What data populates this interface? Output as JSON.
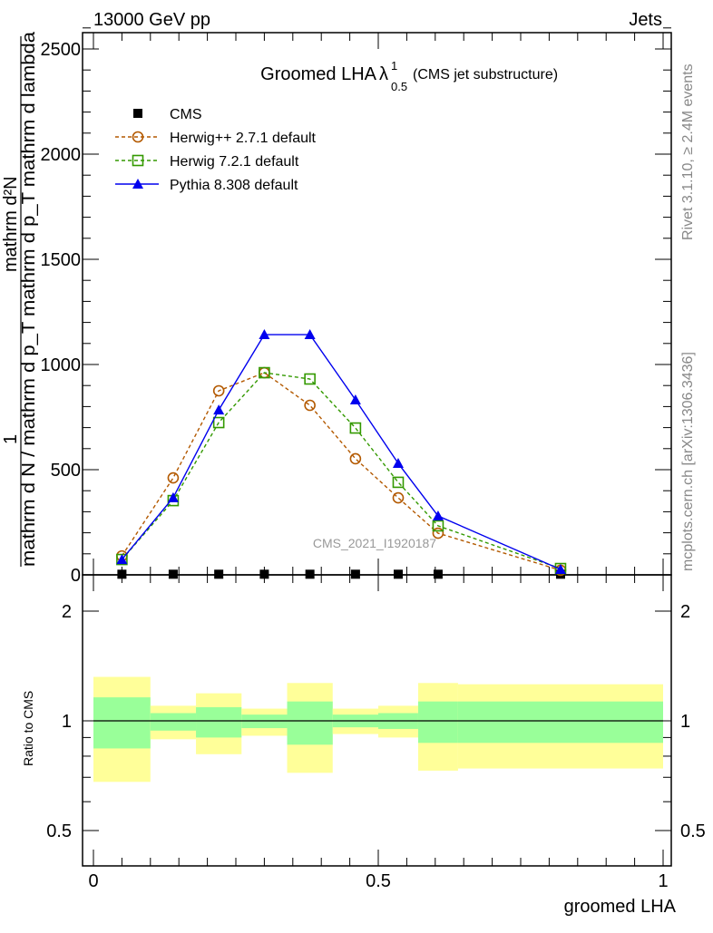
{
  "header": {
    "left": "13000 GeV pp",
    "right": "Jets"
  },
  "side_texts": {
    "rivet": "Rivet 3.1.10, ≥ 2.4M events",
    "mcplots": "mcplots.cern.ch [arXiv:1306.3436]"
  },
  "watermark": "CMS_2021_I1920187",
  "colors": {
    "cms": "#000000",
    "herwigpp": "#b35900",
    "herwig7": "#339900",
    "pythia": "#0000ee",
    "band_outer": "#ffff99",
    "band_inner": "#99ff99"
  },
  "chart_data": [
    {
      "type": "line",
      "title": "Groomed LHA",
      "title_symbol": "λ",
      "title_sup": "1",
      "title_sub": "0.5",
      "title_suffix": "(CMS jet substructure)",
      "ylabel_numerator": "1",
      "ylabel_line1": "mathrm d²N",
      "ylabel_line2": "mathrm d N / mathrm d p_T mathrm d p_T mathrm d lambda",
      "ylim": [
        0,
        2600
      ],
      "xlim": [
        0,
        1
      ],
      "yticks": [
        {
          "v": 0,
          "label": "0"
        },
        {
          "v": 500,
          "label": "500"
        },
        {
          "v": 1000,
          "label": "1000"
        },
        {
          "v": 1500,
          "label": "1500"
        },
        {
          "v": 2000,
          "label": "2000"
        },
        {
          "v": 2500,
          "label": "2500"
        }
      ],
      "legend_position": "top-left",
      "x": [
        0.05,
        0.14,
        0.22,
        0.3,
        0.38,
        0.46,
        0.535,
        0.605,
        0.82
      ],
      "series": [
        {
          "name": "CMS",
          "key": "cms",
          "marker": "square",
          "line": "none",
          "values": [
            3,
            3,
            3,
            3,
            3,
            3,
            3,
            3,
            3
          ]
        },
        {
          "name": "Herwig++ 2.7.1 default",
          "key": "herwigpp",
          "marker": "circle",
          "line": "dashed",
          "values": [
            90,
            461,
            875,
            961,
            806,
            552,
            366,
            198,
            22
          ]
        },
        {
          "name": "Herwig 7.2.1 default",
          "key": "herwig7",
          "marker": "square-open",
          "line": "dashed",
          "values": [
            73,
            353,
            724,
            961,
            931,
            698,
            440,
            233,
            30
          ]
        },
        {
          "name": "Pythia 8.308 default",
          "key": "pythia",
          "marker": "triangle",
          "line": "solid",
          "values": [
            73,
            367,
            784,
            1142,
            1142,
            832,
            530,
            280,
            26
          ]
        }
      ]
    },
    {
      "type": "area",
      "ylabel": "Ratio to CMS",
      "xlabel": "groomed LHA",
      "yscale": "log",
      "ylim": [
        0.4,
        2.5
      ],
      "yticks": [
        {
          "v": 0.5,
          "label": "0.5"
        },
        {
          "v": 1,
          "label": "1"
        },
        {
          "v": 2,
          "label": "2"
        }
      ],
      "xticks": [
        {
          "v": 0,
          "label": "0"
        },
        {
          "v": 0.5,
          "label": "0.5"
        },
        {
          "v": 1,
          "label": "1"
        }
      ],
      "bin_edges": [
        0,
        0.1,
        0.18,
        0.26,
        0.34,
        0.42,
        0.5,
        0.57,
        0.64,
        1.0
      ],
      "outer_band": [
        [
          0.68,
          1.32
        ],
        [
          0.89,
          1.1
        ],
        [
          0.81,
          1.19
        ],
        [
          0.91,
          1.08
        ],
        [
          0.72,
          1.27
        ],
        [
          0.92,
          1.08
        ],
        [
          0.9,
          1.1
        ],
        [
          0.73,
          1.27
        ],
        [
          0.74,
          1.26
        ]
      ],
      "inner_band": [
        [
          0.84,
          1.16
        ],
        [
          0.94,
          1.05
        ],
        [
          0.9,
          1.09
        ],
        [
          0.955,
          1.04
        ],
        [
          0.86,
          1.13
        ],
        [
          0.96,
          1.04
        ],
        [
          0.95,
          1.05
        ],
        [
          0.87,
          1.13
        ],
        [
          0.87,
          1.13
        ]
      ]
    }
  ]
}
